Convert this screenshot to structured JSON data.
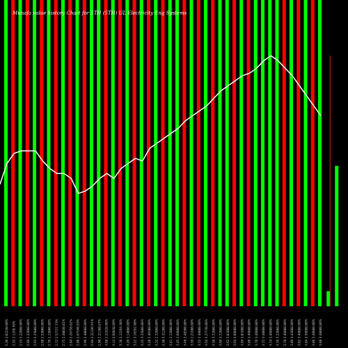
{
  "chart_data": {
    "type": "bar",
    "title": "Munafa value history Chart for 5TH (5TH) UL Electricity Eng Systems",
    "subtitle": "",
    "colors": {
      "background": "#000000",
      "up": "#00ff00",
      "down": "#ff0000",
      "line": "#ffffff",
      "tick_text": "#cccccc",
      "volume_hi": "#cc3300"
    },
    "ylim": [
      0,
      100
    ],
    "categories": [
      "2.30 2.82248.88%",
      "2.32 2.1258.59%",
      "2.53 2.22888.88%",
      "2.60 2.22888.88%",
      "2.63 2.25888.88%",
      "2.68 2.53888.88%",
      "2.70 2.15888.88%",
      "2.72 2.57727.73%",
      "2.75 2.48838.81%",
      "2.84 2.26758.82%",
      "2.88 2.07548.83%",
      "2.90 2.48888.88%",
      "2.94 2.21336.91%",
      "2.98 2.21188.87%",
      "3.08 2.21628.88%",
      "3.12 3.00838.89%",
      "3.18 3.12264.48%",
      "3.20 3.14888.88%",
      "3.22 3.16262.88%",
      "3.25 3.35888.88%",
      "3.28 2.40388.88%",
      "3.32 2.32888.88%",
      "3.38 3.31288.88%",
      "3.41 2.12888.88%",
      "3.45 2.00888.88%",
      "3.48 2.48388.88%",
      "3.50 2.21088.88%",
      "3.52 2.48888.88%",
      "3.54 3.27738.88%",
      "3.58 3.72888.88%",
      "3.60 3.72888.88%",
      "3.62 3.82888.88%",
      "3.64 3.00888.88%",
      "3.66 3.81888.88%",
      "3.68 3.40888.88%",
      "3.70 3.40888.88%",
      "3.72 3.48888.88%",
      "3.74 3.40888.88%",
      "3.76 3.22888.88%",
      "3.78 3.40888.88%",
      "3.80 3.42888.88%",
      "3.82 3.40888.88%",
      "3.84 3.50888.88%",
      "3.86 3.48888.88%",
      "3.88 3.48888.88%"
    ],
    "bar_directions": [
      "up",
      "down",
      "up",
      "down",
      "up",
      "down",
      "up",
      "down",
      "up",
      "down",
      "up",
      "down",
      "up",
      "up",
      "down",
      "up",
      "down",
      "up",
      "down",
      "up",
      "down",
      "up",
      "down",
      "up",
      "up",
      "down",
      "up",
      "down",
      "up",
      "down",
      "up",
      "up",
      "down",
      "up",
      "down",
      "up",
      "up",
      "up",
      "up",
      "down",
      "up",
      "down",
      "up",
      "down",
      "up"
    ],
    "bar_levels": [
      100,
      100,
      100,
      100,
      100,
      100,
      100,
      100,
      100,
      100,
      100,
      100,
      100,
      100,
      100,
      100,
      100,
      100,
      100,
      100,
      100,
      100,
      100,
      100,
      100,
      100,
      100,
      100,
      100,
      100,
      100,
      100,
      100,
      100,
      100,
      100,
      100,
      100,
      100,
      100,
      100,
      100,
      100,
      100,
      100
    ],
    "line_values": [
      57,
      61,
      62,
      62,
      62,
      58,
      55,
      53,
      53,
      51,
      45,
      46,
      48,
      51,
      53,
      51,
      55,
      57,
      59,
      58,
      63,
      65,
      67,
      69,
      71,
      74,
      76,
      78,
      80,
      83,
      86,
      88,
      90,
      92,
      93,
      95,
      98,
      100,
      98,
      95,
      92,
      88,
      84,
      80,
      76
    ],
    "volume_values": [
      6,
      56
    ],
    "volume_line": 100
  }
}
